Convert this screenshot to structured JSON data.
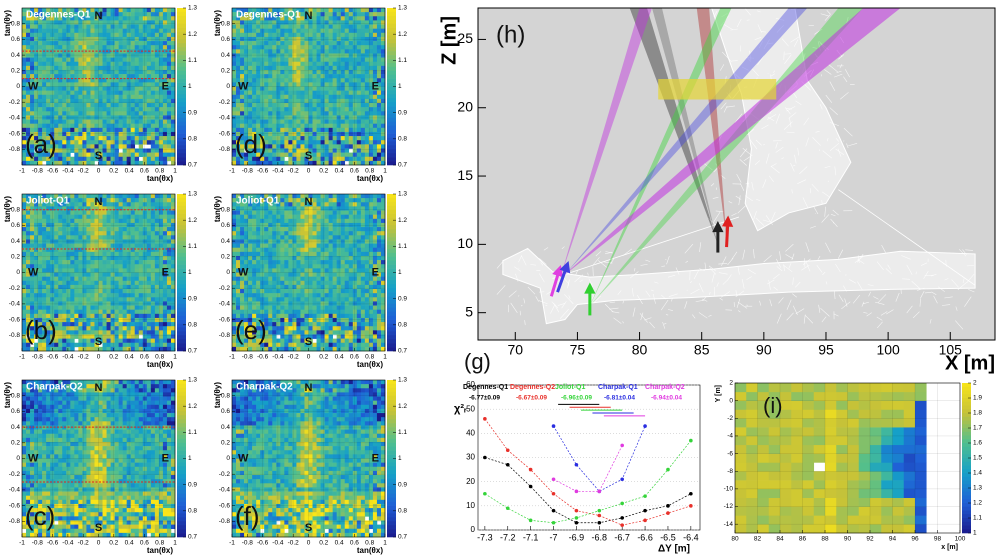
{
  "chart_data": [
    {
      "type": "heatmap",
      "title": "Degennes-Q1",
      "panel": "(a)",
      "compass": [
        "N",
        "W",
        "E",
        "S"
      ],
      "x_label": "tan(θx)",
      "y_label": "tan(θy)",
      "xlim": [
        -1,
        1
      ],
      "ylim": [
        -1,
        1
      ],
      "xticks": [
        -1,
        -0.8,
        -0.6,
        -0.4,
        -0.2,
        0,
        0.2,
        0.4,
        0.6,
        0.8,
        1
      ],
      "yticks": [
        -0.8,
        -0.6,
        -0.4,
        -0.2,
        0,
        0.2,
        0.4,
        0.6,
        0.8
      ],
      "zlim": [
        0.7,
        1.3
      ],
      "zticks": [
        0.7,
        0.8,
        0.9,
        1,
        1.1,
        1.2,
        1.3
      ],
      "cut_lines": [
        0.45,
        0.1
      ]
    },
    {
      "type": "heatmap",
      "title": "Joliot-Q1",
      "panel": "(b)",
      "compass": [
        "N",
        "W",
        "E",
        "S"
      ],
      "x_label": "tan(θx)",
      "y_label": "tan(θy)",
      "xlim": [
        -1,
        1
      ],
      "ylim": [
        -1,
        1
      ],
      "xticks": [
        -1,
        -0.8,
        -0.6,
        -0.4,
        -0.2,
        0,
        0.2,
        0.4,
        0.6,
        0.8,
        1
      ],
      "yticks": [
        -0.8,
        -0.6,
        -0.4,
        -0.2,
        0,
        0.2,
        0.4,
        0.6,
        0.8
      ],
      "zlim": [
        0.7,
        1.3
      ],
      "zticks": [
        0.7,
        0.8,
        0.9,
        1,
        1.1,
        1.2,
        1.3
      ],
      "cut_lines": [
        0.8,
        0.3
      ]
    },
    {
      "type": "heatmap",
      "title": "Charpak-Q2",
      "panel": "(c)",
      "compass": [
        "N",
        "W",
        "E",
        "S"
      ],
      "x_label": "tan(θx)",
      "y_label": "tan(θy)",
      "xlim": [
        -1,
        1
      ],
      "ylim": [
        -1,
        1
      ],
      "xticks": [
        -1,
        -0.8,
        -0.6,
        -0.4,
        -0.2,
        0,
        0.2,
        0.4,
        0.6,
        0.8,
        1
      ],
      "yticks": [
        -0.8,
        -0.6,
        -0.4,
        -0.2,
        0,
        0.2,
        0.4,
        0.6,
        0.8
      ],
      "zlim": [
        0.7,
        1.3
      ],
      "zticks": [
        0.7,
        0.8,
        0.9,
        1,
        1.1,
        1.2,
        1.3
      ],
      "cut_lines": [
        0.4,
        -0.3
      ]
    },
    {
      "type": "heatmap",
      "title": "Degennes-Q1",
      "panel": "(d)",
      "compass": [
        "N",
        "W",
        "E",
        "S"
      ],
      "x_label": "tan(θx)",
      "y_label": "tan(θy)",
      "xlim": [
        -1,
        1
      ],
      "ylim": [
        -1,
        1
      ],
      "xticks": [
        -1,
        -0.8,
        -0.6,
        -0.4,
        -0.2,
        0,
        0.2,
        0.4,
        0.6,
        0.8,
        1
      ],
      "yticks": [
        -0.8,
        -0.6,
        -0.4,
        -0.2,
        0,
        0.2,
        0.4,
        0.6,
        0.8
      ],
      "zlim": [
        0.7,
        1.3
      ],
      "zticks": [
        0.7,
        0.8,
        0.9,
        1,
        1.1,
        1.2,
        1.3
      ]
    },
    {
      "type": "heatmap",
      "title": "Joliot-Q1",
      "panel": "(e)",
      "compass": [
        "N",
        "W",
        "E",
        "S"
      ],
      "x_label": "tan(θx)",
      "y_label": "tan(θy)",
      "xlim": [
        -1,
        1
      ],
      "ylim": [
        -1,
        1
      ],
      "xticks": [
        -1,
        -0.8,
        -0.6,
        -0.4,
        -0.2,
        0,
        0.2,
        0.4,
        0.6,
        0.8,
        1
      ],
      "yticks": [
        -0.8,
        -0.6,
        -0.4,
        -0.2,
        0,
        0.2,
        0.4,
        0.6,
        0.8
      ],
      "zlim": [
        0.7,
        1.3
      ],
      "zticks": [
        0.7,
        0.8,
        0.9,
        1,
        1.1,
        1.2,
        1.3
      ]
    },
    {
      "type": "heatmap",
      "title": "Charpak-Q2",
      "panel": "(f)",
      "compass": [
        "N",
        "W",
        "E",
        "S"
      ],
      "x_label": "tan(θx)",
      "y_label": "tan(θy)",
      "xlim": [
        -1,
        1
      ],
      "ylim": [
        -1,
        1
      ],
      "xticks": [
        -1,
        -0.8,
        -0.6,
        -0.4,
        -0.2,
        0,
        0.2,
        0.4,
        0.6,
        0.8,
        1
      ],
      "yticks": [
        -0.8,
        -0.6,
        -0.4,
        -0.2,
        0,
        0.2,
        0.4,
        0.6,
        0.8
      ],
      "zlim": [
        0.7,
        1.3
      ],
      "zticks": [
        0.7,
        0.8,
        0.9,
        1,
        1.1,
        1.2,
        1.3
      ]
    },
    {
      "type": "scene",
      "panel": "(h)",
      "x_label": "X [m]",
      "y_label": "Z [m]",
      "xlim": [
        67,
        108.6
      ],
      "ylim": [
        3,
        27.3
      ],
      "xticks": [
        70,
        75,
        80,
        85,
        90,
        95,
        100,
        105
      ],
      "yticks": [
        5,
        10,
        15,
        20,
        25
      ]
    },
    {
      "type": "scatter",
      "panel": "(g)",
      "x_label": "ΔY [m]",
      "y_label": "χ²ᵣ",
      "xlim": [
        -7.33,
        -6.36
      ],
      "ylim": [
        0,
        60
      ],
      "xticks": [
        -7.3,
        -7.2,
        -7.1,
        -7,
        -6.9,
        -6.8,
        -6.7,
        -6.6,
        -6.5,
        -6.4
      ],
      "yticks": [
        0,
        10,
        20,
        30,
        40,
        50,
        60
      ],
      "grid": true,
      "x": [
        -7.3,
        -7.2,
        -7.1,
        -7,
        -6.9,
        -6.8,
        -6.7,
        -6.6,
        -6.5,
        -6.4
      ],
      "series": [
        {
          "name": "Degennes-Q1",
          "fit_label": "-6.77±0.09",
          "color": "#000000",
          "values": [
            30,
            27,
            18,
            8,
            3,
            3,
            5,
            8,
            10,
            15
          ]
        },
        {
          "name": "Degennes-Q2",
          "fit_label": "-6.67±0.09",
          "color": "#e8302a",
          "values": [
            46,
            33,
            25,
            15,
            8,
            6,
            2,
            4,
            7,
            10
          ]
        },
        {
          "name": "Joliot-Q1",
          "fit_label": "-6.96±0.09",
          "color": "#35d43a",
          "values": [
            15,
            9,
            4,
            3,
            5,
            8,
            11,
            14,
            25,
            37
          ]
        },
        {
          "name": "Charpak-Q1",
          "fit_label": "-6.81±0.04",
          "color": "#2a2ee0",
          "values": [
            null,
            null,
            null,
            43,
            27,
            16,
            21,
            43,
            null,
            null
          ]
        },
        {
          "name": "Charpak-Q2",
          "fit_label": "-6.94±0.04",
          "color": "#e03ae0",
          "values": [
            null,
            null,
            null,
            21,
            16,
            16,
            35,
            null,
            null,
            null
          ]
        }
      ]
    },
    {
      "type": "heatmap",
      "panel": "(i)",
      "x_label": "x [m]",
      "y_label": "Y [m]",
      "xlim": [
        80,
        100
      ],
      "ylim": [
        -15,
        2
      ],
      "xticks": [
        80,
        82,
        84,
        86,
        88,
        90,
        92,
        94,
        96,
        98,
        100
      ],
      "yticks": [
        -14,
        -12,
        -10,
        -8,
        -6,
        -4,
        -2,
        0,
        2
      ],
      "zlim": [
        1,
        2
      ],
      "zticks": [
        1,
        1.1,
        1.2,
        1.3,
        1.4,
        1.5,
        1.6,
        1.7,
        1.8,
        1.9,
        2
      ]
    }
  ]
}
